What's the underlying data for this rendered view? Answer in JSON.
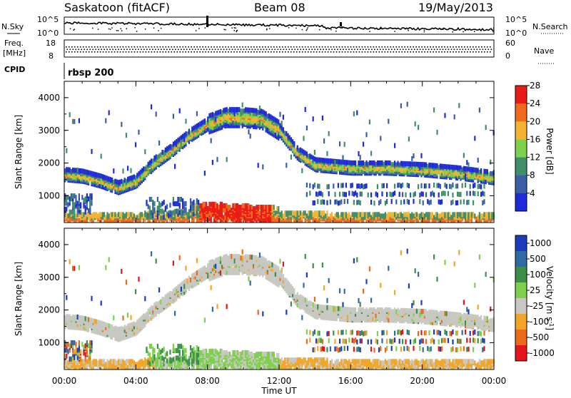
{
  "header": {
    "station": "Saskatoon (fitACF)",
    "beam": "Beam 08",
    "date": "19/May/2013"
  },
  "top_panels": {
    "nsky_label": "N.Sky",
    "nsearch_label": "N.Search",
    "nsky_ticks": [
      "10^5",
      "10^0"
    ],
    "nsearch_ticks": [
      "10^5",
      "10^0"
    ],
    "freq_label": "Freq.",
    "freq_unit": "[MHz]",
    "freq_ticks": [
      "18",
      "8"
    ],
    "nave_label": "Nave",
    "nave_ticks": [
      "60",
      "0"
    ],
    "cpid_label": "CPID",
    "cpid_value": "rbsp 200"
  },
  "chart_data": [
    {
      "type": "heatmap",
      "panel": "power",
      "ylabel": "Slant Range [km]",
      "xlabel": "Time UT",
      "y_ticks": [
        1000,
        2000,
        3000,
        4000
      ],
      "x_ticks": [
        "00:00",
        "04:00",
        "08:00",
        "12:00",
        "16:00",
        "20:00",
        "00:00"
      ],
      "ylim": [
        180,
        4500
      ],
      "colorbar": {
        "label": "Power [dB]",
        "ticks": [
          4,
          8,
          12,
          16,
          20,
          24,
          28
        ],
        "colors": [
          "#1f2bd8",
          "#3c5ea6",
          "#3f8f6a",
          "#7dd24d",
          "#f2b431",
          "#ef6a1c",
          "#e91b16"
        ]
      },
      "features": [
        {
          "name": "main echo band",
          "points": [
            [
              0,
              1650
            ],
            [
              1,
              1600
            ],
            [
              2,
              1450
            ],
            [
              3,
              1250
            ],
            [
              4,
              1450
            ],
            [
              5,
              2000
            ],
            [
              6,
              2400
            ],
            [
              7,
              2850
            ],
            [
              8,
              3200
            ],
            [
              9,
              3400
            ],
            [
              10,
              3400
            ],
            [
              11,
              3350
            ],
            [
              12,
              3000
            ],
            [
              13,
              2300
            ],
            [
              14,
              1950
            ],
            [
              15,
              1900
            ],
            [
              16,
              1850
            ],
            [
              18,
              1850
            ],
            [
              20,
              1800
            ],
            [
              22,
              1700
            ],
            [
              24,
              1550
            ]
          ]
        },
        {
          "name": "ground scatter",
          "points": [
            [
              0,
              350
            ],
            [
              2,
              340
            ],
            [
              4,
              350
            ],
            [
              6,
              400
            ],
            [
              8,
              500
            ],
            [
              10,
              450
            ],
            [
              12,
              380
            ],
            [
              16,
              350
            ],
            [
              20,
              340
            ],
            [
              24,
              330
            ]
          ]
        }
      ]
    },
    {
      "type": "heatmap",
      "panel": "velocity",
      "ylabel": "Slant Range [km]",
      "xlabel": "Time UT",
      "y_ticks": [
        1000,
        2000,
        3000,
        4000
      ],
      "x_ticks": [
        "00:00",
        "04:00",
        "08:00",
        "12:00",
        "16:00",
        "20:00",
        "00:00"
      ],
      "ylim": [
        180,
        4500
      ],
      "colorbar": {
        "label": "Velocity [m s^-1]",
        "ticks": [
          1000,
          500,
          100,
          25,
          -25,
          -100,
          -500,
          -1000
        ],
        "colors": [
          "#1e3bbd",
          "#2f6aa5",
          "#3b8f4a",
          "#7ed04c",
          "#c8c8c2",
          "#f2a628",
          "#ee6a1b",
          "#e5161b"
        ]
      }
    }
  ]
}
